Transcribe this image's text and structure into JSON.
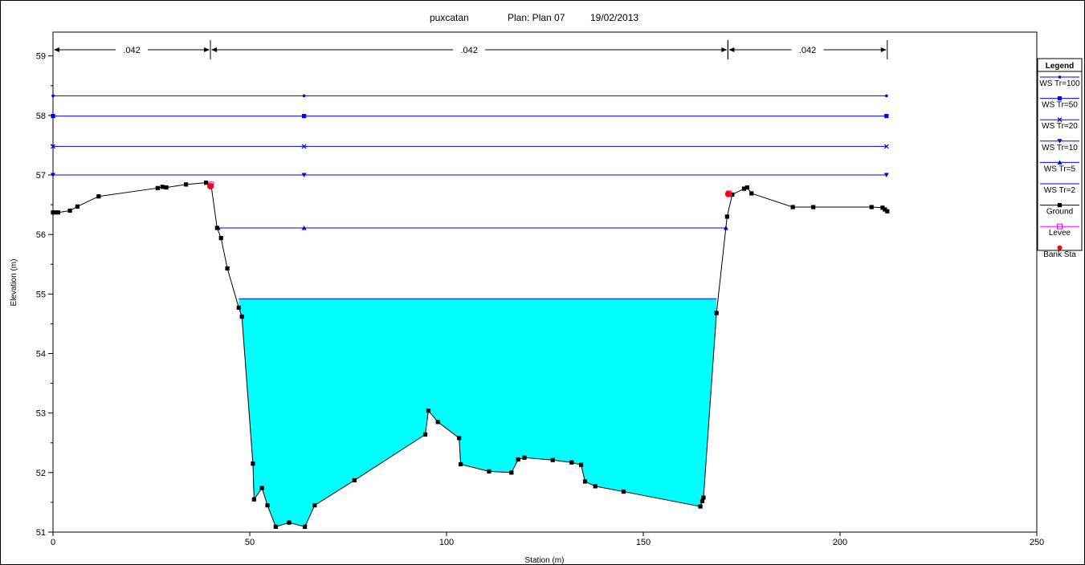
{
  "title": {
    "main": "puxcatan",
    "plan": "Plan: Plan 07",
    "date": "19/02/2013"
  },
  "chart_data": {
    "type": "line",
    "xlabel": "Station (m)",
    "ylabel": "Elevation (m)",
    "xlim": [
      0,
      250
    ],
    "ylim": [
      51,
      59.4
    ],
    "x_ticks": [
      0,
      50,
      100,
      150,
      200,
      250
    ],
    "y_ticks": [
      51,
      52,
      53,
      54,
      55,
      56,
      57,
      58,
      59
    ],
    "grid": false,
    "legend_position": "right",
    "legend_title": "Legend",
    "manning": [
      {
        "from": 0,
        "to": 40,
        "label": ".042"
      },
      {
        "from": 40,
        "to": 171.5,
        "label": ".042"
      },
      {
        "from": 171.5,
        "to": 212,
        "label": ".042"
      }
    ],
    "water_fill": {
      "elevation": 54.92,
      "from": 47.2,
      "to": 168.6,
      "color": "#00ffff"
    },
    "series": [
      {
        "name": "WS Tr=100",
        "kind": "ws",
        "marker": "dot",
        "color": "#0000ff",
        "x": [
          0,
          63.8,
          211.8
        ],
        "y": [
          58.33,
          58.33,
          58.33
        ]
      },
      {
        "name": "WS Tr=50",
        "kind": "ws",
        "marker": "square",
        "color": "#0000ff",
        "x": [
          0,
          63.8,
          211.8
        ],
        "y": [
          57.99,
          57.99,
          57.99
        ]
      },
      {
        "name": "WS Tr=20",
        "kind": "ws",
        "marker": "x",
        "color": "#0000ff",
        "x": [
          0,
          63.8,
          211.8
        ],
        "y": [
          57.48,
          57.48,
          57.48
        ]
      },
      {
        "name": "WS Tr=10",
        "kind": "ws",
        "marker": "tri-down",
        "color": "#0000ff",
        "x": [
          0,
          63.8,
          211.8
        ],
        "y": [
          57.0,
          57.0,
          57.0
        ]
      },
      {
        "name": "WS Tr=5",
        "kind": "ws",
        "marker": "tri-up",
        "color": "#0000ff",
        "x": [
          42,
          63.8,
          171
        ],
        "y": [
          56.11,
          56.11,
          56.11
        ]
      },
      {
        "name": "WS Tr=2",
        "kind": "ws",
        "marker": "none",
        "color": "#0000ff",
        "x": [
          47.2,
          168.6
        ],
        "y": [
          54.92,
          54.92
        ]
      },
      {
        "name": "Ground",
        "kind": "ground",
        "marker": "square",
        "color": "#000000",
        "x": [
          0,
          0.5,
          1.3,
          4.3,
          6.2,
          11.6,
          26.6,
          27.8,
          28.8,
          33.8,
          38.9,
          40.2,
          41.7,
          42.7,
          44.3,
          47.2,
          48.0,
          50.8,
          51.1,
          53.1,
          54.5,
          56.6,
          60.0,
          64.0,
          66.5,
          76.6,
          94.6,
          95.4,
          97.8,
          103.2,
          103.6,
          110.8,
          116.5,
          118.2,
          119.8,
          127.0,
          131.8,
          134.2,
          135.2,
          137.8,
          145.0,
          164.5,
          165.0,
          165.3,
          168.6,
          171.3,
          172.6,
          175.6,
          176.4,
          177.5,
          188.0,
          193.2,
          208.0,
          210.8,
          211.4,
          212.0
        ],
        "y": [
          56.37,
          56.37,
          56.37,
          56.4,
          56.47,
          56.64,
          56.78,
          56.8,
          56.79,
          56.84,
          56.87,
          56.82,
          56.11,
          55.94,
          55.43,
          54.77,
          54.62,
          52.15,
          51.55,
          51.74,
          51.45,
          51.09,
          51.16,
          51.09,
          51.45,
          51.87,
          52.64,
          53.04,
          52.85,
          52.58,
          52.14,
          52.02,
          52.0,
          52.22,
          52.25,
          52.21,
          52.17,
          52.13,
          51.85,
          51.77,
          51.68,
          51.43,
          51.52,
          51.58,
          54.68,
          56.3,
          56.67,
          56.77,
          56.79,
          56.69,
          56.46,
          56.46,
          56.46,
          56.45,
          56.42,
          56.39
        ]
      },
      {
        "name": "Levee",
        "kind": "levee",
        "marker": "square-open",
        "color": "#ff00ff",
        "x": [
          40.2,
          171.8
        ],
        "y": [
          56.84,
          56.69
        ]
      },
      {
        "name": "Bank Sta",
        "kind": "bank",
        "marker": "dot",
        "color": "#ff0000",
        "x": [
          40.0,
          171.6
        ],
        "y": [
          56.81,
          56.68
        ]
      }
    ]
  }
}
